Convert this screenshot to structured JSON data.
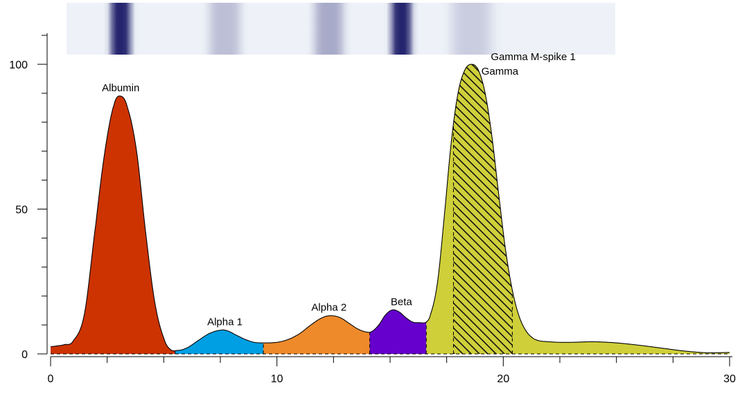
{
  "chart_data": {
    "type": "area",
    "xlim": [
      0,
      30
    ],
    "ylim": [
      0,
      100
    ],
    "x_major_ticks": [
      0,
      10,
      20,
      30
    ],
    "y_major_ticks": [
      0,
      50,
      100
    ],
    "x_minor_step": 2.5,
    "y_minor_step": 10,
    "curve_x": [
      0,
      0.3,
      0.6,
      1,
      1.5,
      2,
      2.4,
      2.8,
      3.1,
      3.4,
      3.8,
      4.2,
      4.6,
      5,
      5.3,
      5.6,
      6,
      6.5,
      7,
      7.5,
      7.8,
      8.2,
      8.6,
      9,
      9.4,
      10,
      10.5,
      11,
      11.5,
      12,
      12.4,
      12.8,
      13.2,
      13.6,
      14,
      14.2,
      14.5,
      14.8,
      15.1,
      15.4,
      15.7,
      16,
      16.3,
      16.6,
      16.8,
      17.1,
      17.4,
      17.7,
      18,
      18.3,
      18.6,
      18.9,
      19.2,
      19.5,
      19.8,
      20.1,
      20.4,
      20.7,
      21,
      21.3,
      21.6,
      22,
      22.5,
      23,
      24,
      25,
      26,
      27,
      28,
      29,
      30
    ],
    "curve_y": [
      2.5,
      2.8,
      3.2,
      4.5,
      14,
      45,
      70,
      86,
      89,
      85,
      70,
      42,
      18,
      5.5,
      1.5,
      1.2,
      2,
      4.5,
      7,
      8.2,
      8,
      6.5,
      5,
      4,
      3.8,
      4,
      5,
      7,
      10,
      12.5,
      13.2,
      12.5,
      10.5,
      8.5,
      7.5,
      7.8,
      10,
      13.5,
      15.2,
      14.5,
      12.5,
      11,
      10.8,
      11,
      14,
      25,
      48,
      73,
      90,
      98,
      100,
      98,
      90,
      75,
      55,
      36,
      22,
      13,
      8,
      5.5,
      4.5,
      4.2,
      4,
      4,
      4.2,
      3.8,
      3,
      2,
      1,
      0.4,
      0.5
    ],
    "fractions": [
      {
        "name": "Albumin",
        "x_start": 0,
        "x_end": 5.5,
        "color": "#CC3300",
        "label_x": 3.1,
        "label_y": 89
      },
      {
        "name": "Alpha 1",
        "x_start": 5.5,
        "x_end": 9.4,
        "color": "#009FE3",
        "label_x": 7.7,
        "label_y": 8.2
      },
      {
        "name": "Alpha 2",
        "x_start": 9.4,
        "x_end": 14.1,
        "color": "#EE8A2A",
        "label_x": 12.3,
        "label_y": 13.2
      },
      {
        "name": "Beta",
        "x_start": 14.1,
        "x_end": 16.6,
        "color": "#6600CC",
        "label_x": 15.5,
        "label_y": 15.2
      },
      {
        "name": "Gamma",
        "x_start": 16.6,
        "x_end": 30,
        "color": "#CFCF3A",
        "label_x": 19.4,
        "label_y": 96
      }
    ],
    "mspike": {
      "name": "Gamma M-spike 1",
      "x_start": 17.8,
      "x_end": 20.4,
      "hatch": true,
      "label_x": 20.0,
      "label_y": 101
    }
  },
  "gel_strip": {
    "bands": [
      {
        "center": 3.1,
        "intensity": 1.0,
        "width": 0.9
      },
      {
        "center": 7.7,
        "intensity": 0.25,
        "width": 1.4
      },
      {
        "center": 12.3,
        "intensity": 0.35,
        "width": 1.3
      },
      {
        "center": 15.5,
        "intensity": 1.0,
        "width": 0.9
      },
      {
        "center": 18.6,
        "intensity": 0.18,
        "width": 1.8
      }
    ],
    "colors": {
      "light": "#EEF2F8",
      "dark": "#24246E"
    }
  }
}
